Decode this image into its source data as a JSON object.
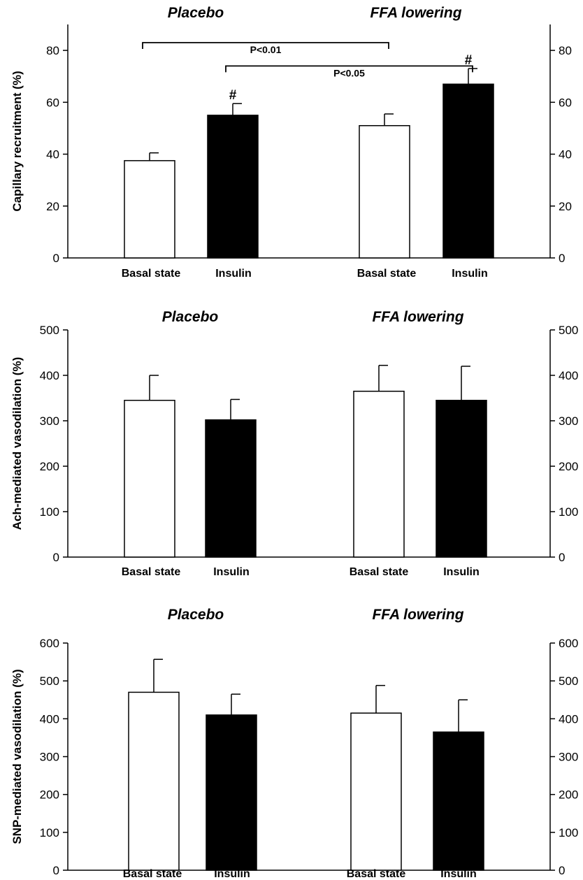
{
  "chart_data": [
    {
      "type": "bar",
      "ylabel": "Capillary recruitment (%)",
      "ylim": [
        0,
        90
      ],
      "yticks": [
        0,
        20,
        40,
        60,
        80
      ],
      "right_axis": true,
      "groups": [
        "Placebo",
        "FFA lowering"
      ],
      "categories": [
        "Basal state",
        "Insulin",
        "Basal state",
        "Insulin"
      ],
      "bar_colors": [
        "#ffffff",
        "#000000",
        "#ffffff",
        "#000000"
      ],
      "values": [
        37.5,
        55,
        51,
        67
      ],
      "errors": [
        3,
        4.5,
        4.5,
        6
      ],
      "markers": [
        "",
        "#",
        "",
        "#"
      ],
      "brackets": [
        {
          "from": 0,
          "to": 2,
          "y": 83,
          "label": "P<0.01"
        },
        {
          "from": 1,
          "to": 3,
          "y": 74,
          "label": "P<0.05"
        }
      ]
    },
    {
      "type": "bar",
      "ylabel": "Ach-mediated vasodilation (%)",
      "ylim": [
        0,
        500
      ],
      "yticks": [
        0,
        100,
        200,
        300,
        400,
        500
      ],
      "right_axis": true,
      "groups": [
        "Placebo",
        "FFA lowering"
      ],
      "categories": [
        "Basal state",
        "Insulin",
        "Basal state",
        "Insulin"
      ],
      "bar_colors": [
        "#ffffff",
        "#000000",
        "#ffffff",
        "#000000"
      ],
      "values": [
        345,
        302,
        365,
        345
      ],
      "errors": [
        55,
        45,
        57,
        75
      ],
      "markers": [
        "",
        "",
        "",
        ""
      ],
      "brackets": []
    },
    {
      "type": "bar",
      "ylabel": "SNP-mediated vasodilation (%)",
      "ylim": [
        0,
        600
      ],
      "yticks": [
        0,
        100,
        200,
        300,
        400,
        500,
        600
      ],
      "right_axis": true,
      "groups": [
        "Placebo",
        "FFA lowering"
      ],
      "categories": [
        "Basal state",
        "Insulin",
        "Basal state",
        "Insulin"
      ],
      "bar_colors": [
        "#ffffff",
        "#000000",
        "#ffffff",
        "#000000"
      ],
      "values": [
        470,
        410,
        415,
        365
      ],
      "errors": [
        87,
        55,
        73,
        85
      ],
      "markers": [
        "",
        "",
        "",
        ""
      ],
      "brackets": []
    }
  ]
}
